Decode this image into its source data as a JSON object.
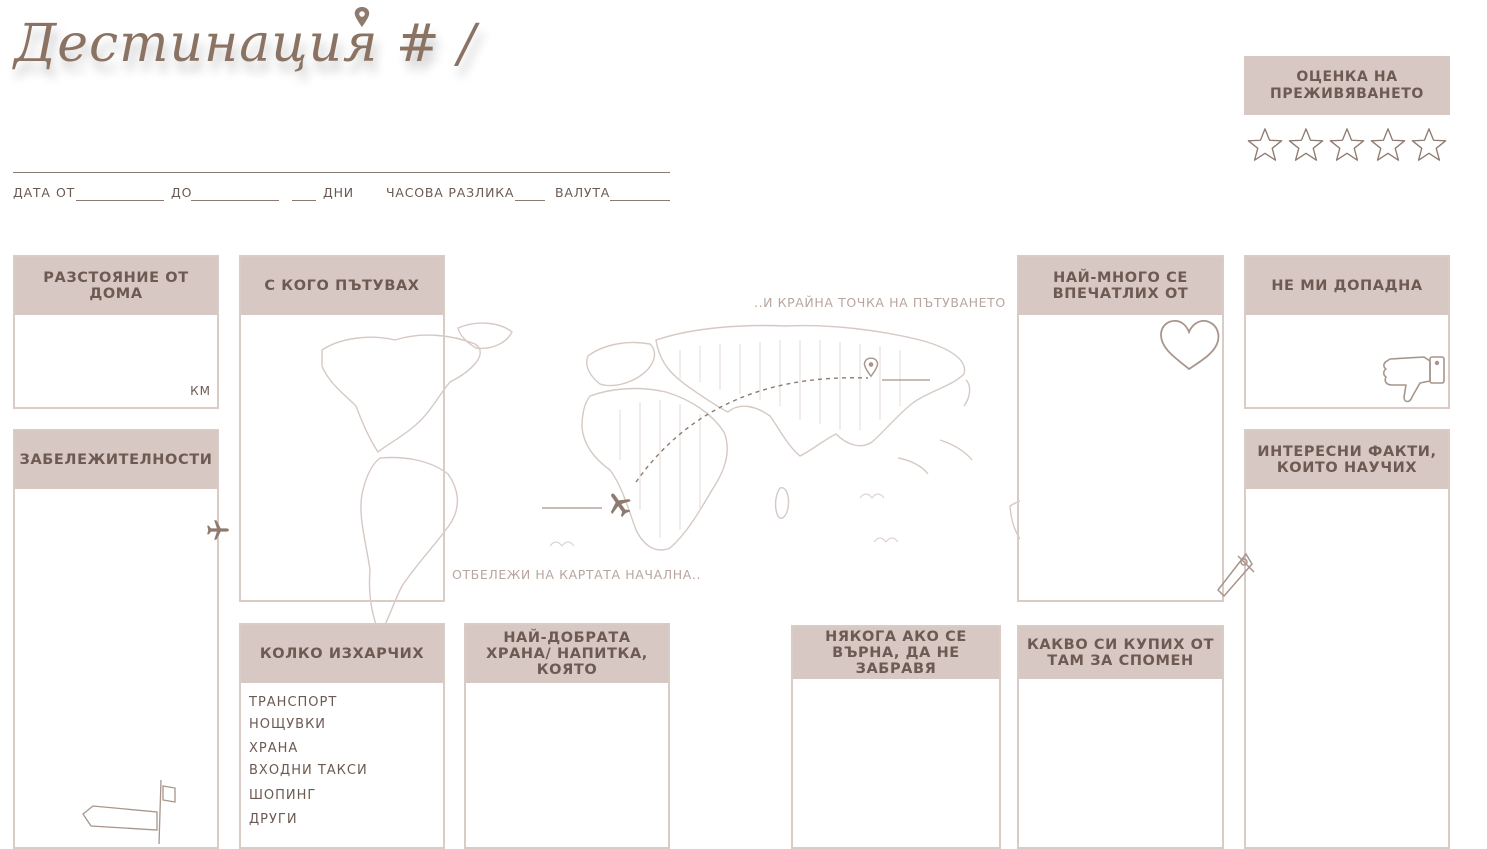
{
  "header": {
    "title": "Дестинация # /",
    "meta": {
      "date_label": "ДАТА",
      "from_label": "ОТ",
      "to_label": "ДО",
      "days_label": "ДНИ",
      "time_diff_label": "ЧАСОВА РАЗЛИКА",
      "currency_label": "ВАЛУТА"
    }
  },
  "rating": {
    "title": "ОЦЕНКА НА ПРЕЖИВЯВАНЕТО",
    "max_stars": 5,
    "filled_stars": 0
  },
  "map": {
    "end_label": "..И КРАЙНА ТОЧКА НА ПЪТУВАНЕТО",
    "start_label": "ОТБЕЛЕЖИ НА КАРТАТА НАЧАЛНА.."
  },
  "sections": {
    "distance": {
      "title": "РАЗСТОЯНИЕ ОТ ДОМА",
      "unit": "КМ"
    },
    "companions": {
      "title": "С КОГО ПЪТУВАХ"
    },
    "impressed": {
      "title": "НАЙ-МНОГО СЕ ВПЕЧАТЛИХ ОТ"
    },
    "disliked": {
      "title": "НЕ МИ ДОПАДНА"
    },
    "landmarks": {
      "title": "ЗАБЕЛЕЖИТЕЛНОСТИ"
    },
    "facts": {
      "title": "ИНТЕРЕСНИ ФАКТИ, КОИТО НАУЧИХ"
    },
    "spending": {
      "title": "КОЛКО ИЗХАРЧИХ",
      "items": [
        "ТРАНСПОРТ",
        "НОЩУВКИ",
        "ХРАНА",
        "ВХОДНИ ТАКСИ",
        "ШОПИНГ",
        "ДРУГИ"
      ]
    },
    "best_food": {
      "title": "НАЙ-ДОБРАТА ХРАНА/ НАПИТКА, КОЯТО"
    },
    "remember": {
      "title": "НЯКОГА АКО СЕ ВЪРНА, ДА НЕ ЗАБРАВЯ"
    },
    "souvenir": {
      "title": "КАКВО СИ КУПИХ ОТ ТАМ ЗА СПОМЕН"
    }
  },
  "colors": {
    "header_fill": "#d8c8c3",
    "border": "#d9cbc5",
    "text": "#6d5a52",
    "accent": "#8b7364",
    "map_line": "#d6c9c3"
  },
  "icons": [
    "location-pin-icon",
    "star-icon",
    "heart-icon",
    "thumbs-down-icon",
    "airplane-icon",
    "signpost-icon",
    "compass-icon"
  ]
}
